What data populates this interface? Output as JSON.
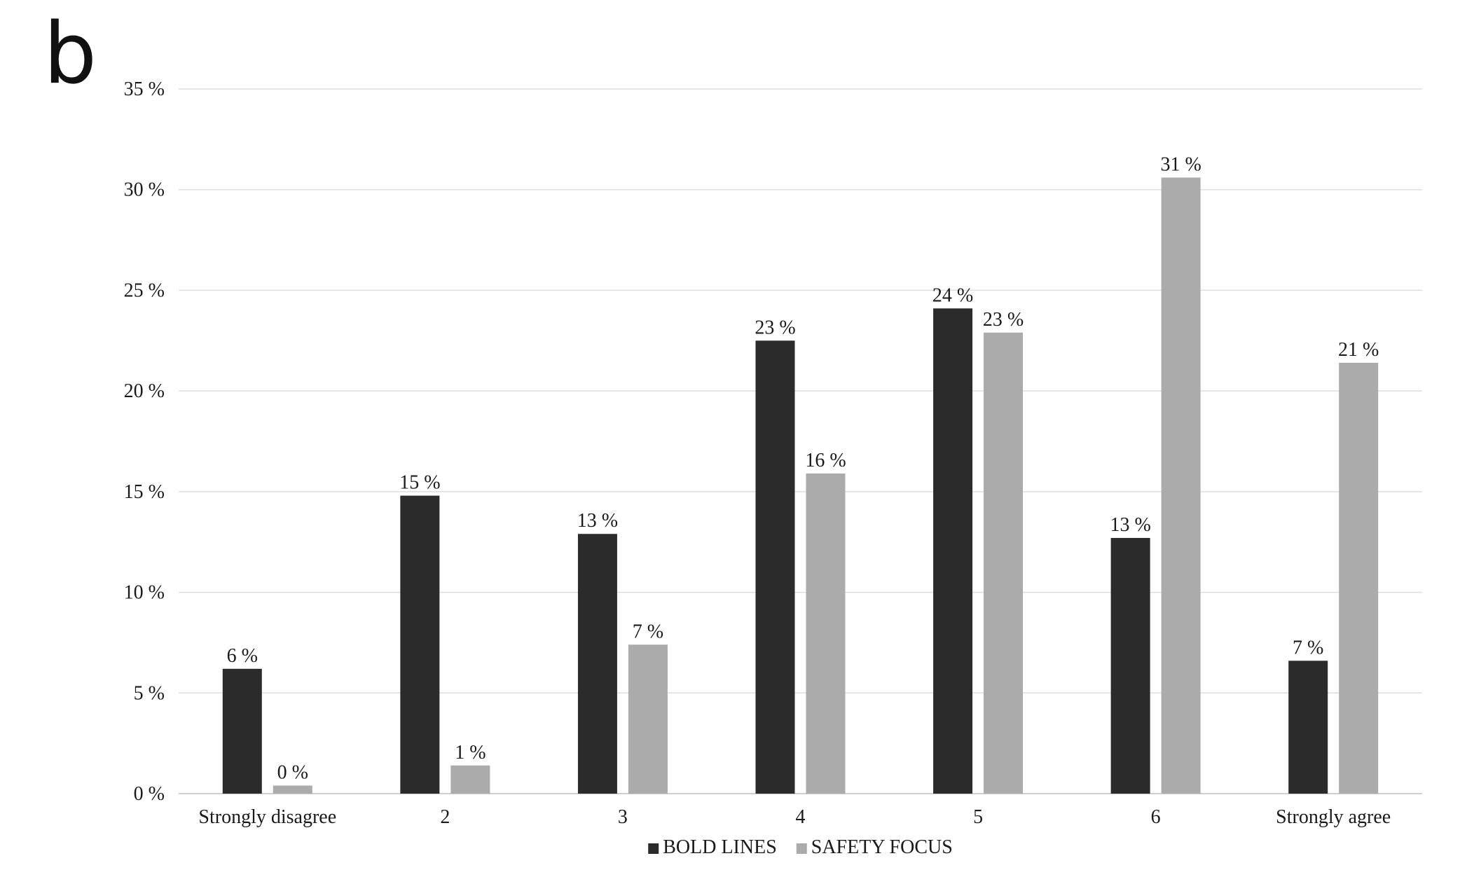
{
  "panel_label": "b",
  "chart_data": {
    "type": "bar",
    "title": "",
    "xlabel": "",
    "ylabel": "",
    "ylim": [
      0,
      35
    ],
    "yticks": [
      "0 %",
      "5 %",
      "10 %",
      "15 %",
      "20 %",
      "25 %",
      "30 %",
      "35 %"
    ],
    "ytick_values": [
      0,
      5,
      10,
      15,
      20,
      25,
      30,
      35
    ],
    "grid": true,
    "legend_position": "bottom",
    "categories": [
      "Strongly disagree",
      "2",
      "3",
      "4",
      "5",
      "6",
      "Strongly agree"
    ],
    "series": [
      {
        "name": "BOLD LINES",
        "color": "#2b2b2b",
        "values": [
          6.2,
          14.8,
          12.9,
          22.5,
          24.1,
          12.7,
          6.6
        ],
        "labels": [
          "6 %",
          "15 %",
          "13 %",
          "23 %",
          "24 %",
          "13 %",
          "7 %"
        ]
      },
      {
        "name": "SAFETY FOCUS",
        "color": "#ababab",
        "values": [
          0.4,
          1.4,
          7.4,
          15.9,
          22.9,
          30.6,
          21.4
        ],
        "labels": [
          "0 %",
          "1 %",
          "7 %",
          "16 %",
          "23 %",
          "31 %",
          "21 %"
        ]
      }
    ]
  }
}
